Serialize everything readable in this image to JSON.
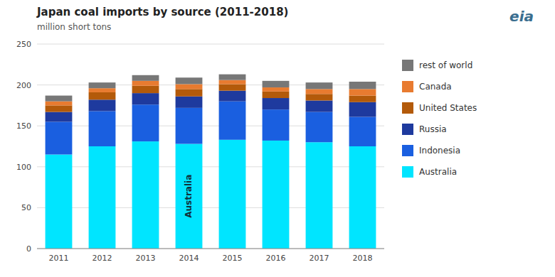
{
  "chart_data": {
    "type": "bar",
    "stacked": true,
    "title": "Japan coal imports by source (2011-2018)",
    "subtitle": "million short tons",
    "categories": [
      "2011",
      "2012",
      "2013",
      "2014",
      "2015",
      "2016",
      "2017",
      "2018"
    ],
    "series": [
      {
        "name": "Australia",
        "color": "#00e5ff",
        "values": [
          115,
          125,
          131,
          128,
          133,
          132,
          130,
          125
        ]
      },
      {
        "name": "Indonesia",
        "color": "#1a5fe0",
        "values": [
          40,
          43,
          45,
          44,
          47,
          38,
          37,
          36
        ]
      },
      {
        "name": "Russia",
        "color": "#1e3a9e",
        "values": [
          12,
          14,
          14,
          14,
          13,
          14,
          14,
          18
        ]
      },
      {
        "name": "United States",
        "color": "#b35a0a",
        "values": [
          8,
          9,
          9,
          9,
          8,
          8,
          8,
          8
        ]
      },
      {
        "name": "Canada",
        "color": "#e87b30",
        "values": [
          5,
          5,
          6,
          6,
          5,
          5,
          6,
          8
        ]
      },
      {
        "name": "rest of world",
        "color": "#777777",
        "values": [
          7,
          7,
          7,
          8,
          7,
          8,
          8,
          9
        ]
      }
    ],
    "ylim": [
      0,
      250
    ],
    "yticks": [
      0,
      50,
      100,
      150,
      200,
      250
    ],
    "grid": true,
    "legend": "right",
    "annotations": [
      "Australia",
      "eia"
    ]
  }
}
